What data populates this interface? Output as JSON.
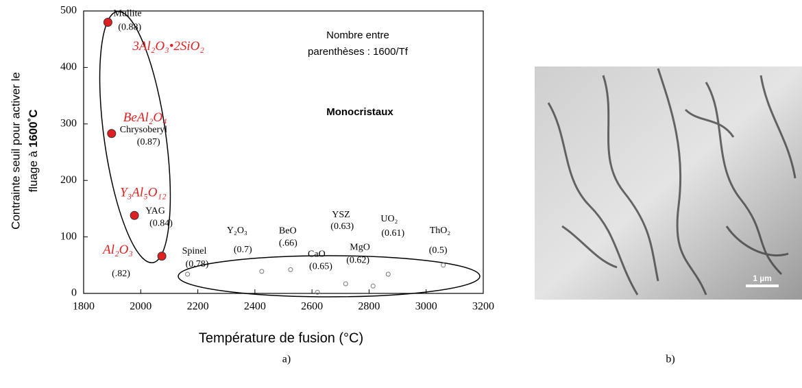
{
  "chart_data": {
    "type": "scatter",
    "x_label": "Température de fusion (°C)",
    "y_label": [
      "Contrainte seuil pour activer le",
      "fluage à ",
      "1600˚C"
    ],
    "annotation": [
      "Nombre entre",
      "parenthèses : 1600/Tf"
    ],
    "group_label": "Monocristaux",
    "xlim": [
      1800,
      3200
    ],
    "xticks": [
      1800,
      2000,
      2200,
      2400,
      2600,
      2800,
      3000,
      3200
    ],
    "ylim": [
      0,
      500
    ],
    "yticks": [
      0,
      100,
      200,
      300,
      400,
      500
    ],
    "series": [
      {
        "color": "#e02020",
        "marker": "filled",
        "x": [
          1885,
          1898,
          1978,
          2074
        ],
        "values": [
          480,
          283,
          138,
          66
        ],
        "labels": [
          "Mullite",
          "Chrysoberyl",
          "YAG",
          null
        ],
        "ratios": [
          "(0.88)",
          "(0.87)",
          "(0.84)",
          "(.82)"
        ],
        "formulas": [
          "3Al₂O₃•2SiO₂",
          "BeAl₂O₄",
          "Y₃Al₅O₁₂",
          "Al₂O₃"
        ]
      },
      {
        "color": "#777777",
        "marker": "open",
        "x": [
          2164,
          2424,
          2525,
          2619,
          2718,
          2814,
          2867,
          3060
        ],
        "values": [
          34,
          39,
          42,
          2,
          17,
          13,
          34,
          50
        ],
        "labels": [
          "Spinel",
          "Y₂O₃",
          "BeO",
          "CaO",
          "YSZ",
          "MgO",
          "UO₂",
          "ThO₂"
        ],
        "ratios": [
          "(0.78)",
          "(0.7)",
          "(.66)",
          "(0.65)",
          "(0.63)",
          "(0.62)",
          "(0.61)",
          "(0.5)"
        ]
      }
    ]
  },
  "captions": [
    "a)",
    "b)"
  ],
  "image": {
    "scale_bar": "1 µm"
  }
}
